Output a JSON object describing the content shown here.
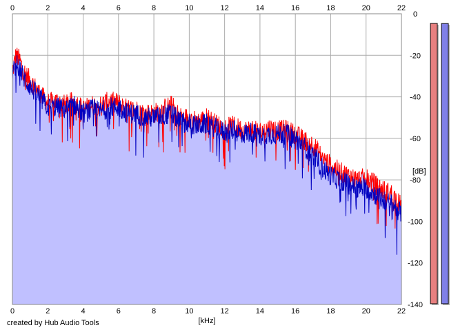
{
  "credit": "created by Hub Audio Tools",
  "chart_data": {
    "type": "area",
    "xlabel": "[kHz]",
    "ylabel": "[dB]",
    "xlim": [
      0,
      22
    ],
    "ylim": [
      -140,
      0
    ],
    "x_ticks": [
      0,
      2,
      4,
      6,
      8,
      10,
      12,
      14,
      16,
      18,
      20,
      22
    ],
    "y_ticks": [
      0,
      -20,
      -40,
      -60,
      -80,
      -100,
      -120,
      -140
    ],
    "y_tick_labels": [
      "0",
      "-20",
      "-40",
      "-60",
      "-80",
      "-100",
      "-120",
      "-140"
    ],
    "grid": true,
    "colors": {
      "background": "#ffffff",
      "fill": "#c0c0ff",
      "grid": "#aaaaaa",
      "left_channel": "#ff0000",
      "right_channel": "#0000c0",
      "meter_left": "#e88080",
      "meter_right": "#8080e8"
    },
    "series": [
      {
        "color": "#ff0000",
        "x": [
          0,
          0.2,
          0.4,
          0.6,
          0.8,
          1,
          1.5,
          2,
          2.5,
          3,
          3.5,
          4,
          4.5,
          5,
          5.5,
          6,
          6.5,
          7,
          7.5,
          8,
          8.5,
          9,
          9.5,
          10,
          10.5,
          11,
          11.5,
          12,
          12.5,
          13,
          13.5,
          14,
          14.5,
          15,
          15.5,
          16,
          16.5,
          17,
          17.5,
          18,
          18.5,
          19,
          19.5,
          20,
          20.5,
          21,
          21.5,
          22
        ],
        "values": [
          -28,
          -20,
          -22,
          -27,
          -30,
          -32,
          -38,
          -43,
          -42,
          -44,
          -42,
          -46,
          -44,
          -44,
          -42,
          -43,
          -46,
          -46,
          -48,
          -48,
          -46,
          -44,
          -50,
          -50,
          -52,
          -50,
          -53,
          -55,
          -54,
          -56,
          -56,
          -57,
          -55,
          -56,
          -56,
          -58,
          -61,
          -63,
          -69,
          -73,
          -76,
          -78,
          -80,
          -79,
          -82,
          -85,
          -87,
          -93
        ]
      },
      {
        "color": "#0000c0",
        "x": [
          0,
          0.2,
          0.4,
          0.6,
          0.8,
          1,
          1.5,
          2,
          2.5,
          3,
          3.5,
          4,
          4.5,
          5,
          5.5,
          6,
          6.5,
          7,
          7.5,
          8,
          8.5,
          9,
          9.5,
          10,
          10.5,
          11,
          11.5,
          12,
          12.5,
          13,
          13.5,
          14,
          14.5,
          15,
          15.5,
          16,
          16.5,
          17,
          17.5,
          18,
          18.5,
          19,
          19.5,
          20,
          20.5,
          21,
          21.5,
          22
        ],
        "values": [
          -30,
          -24,
          -26,
          -30,
          -33,
          -35,
          -40,
          -45,
          -45,
          -46,
          -44,
          -48,
          -46,
          -47,
          -45,
          -45,
          -48,
          -48,
          -50,
          -50,
          -49,
          -48,
          -52,
          -53,
          -54,
          -53,
          -55,
          -57,
          -56,
          -58,
          -57,
          -59,
          -58,
          -58,
          -58,
          -60,
          -64,
          -68,
          -74,
          -78,
          -80,
          -82,
          -84,
          -84,
          -87,
          -90,
          -92,
          -96
        ]
      }
    ],
    "meters": {
      "left_level_db": -5,
      "right_level_db": -6
    }
  }
}
